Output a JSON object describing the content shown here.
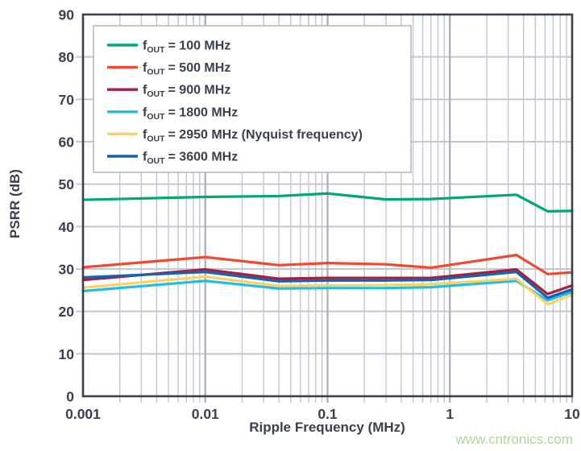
{
  "chart_data": {
    "type": "line",
    "title": "",
    "xlabel": "Ripple Frequency (MHz)",
    "ylabel": "PSRR (dB)",
    "x_scale": "log",
    "xlim": [
      0.001,
      10
    ],
    "ylim": [
      0,
      90
    ],
    "grid": "on",
    "legend_position": "upper-left",
    "x_ticks": [
      {
        "value": 0.001,
        "label": "0.001"
      },
      {
        "value": 0.01,
        "label": "0.01"
      },
      {
        "value": 0.1,
        "label": "0.1"
      },
      {
        "value": 1,
        "label": "1"
      },
      {
        "value": 10,
        "label": "10"
      }
    ],
    "y_ticks": [
      0,
      10,
      20,
      30,
      40,
      50,
      60,
      70,
      80,
      90
    ],
    "x": [
      0.001,
      0.01,
      0.04,
      0.1,
      0.3,
      0.7,
      3.5,
      6.3,
      10
    ],
    "series": [
      {
        "name": "fOUT = 100 MHz",
        "label_prefix": "f",
        "label_sub": "OUT",
        "label_rest": "= 100 MHz",
        "color": "#00a873",
        "values": [
          46.3,
          47.0,
          47.2,
          47.8,
          46.4,
          46.5,
          47.5,
          43.6,
          43.7
        ]
      },
      {
        "name": "fOUT = 500 MHz",
        "label_prefix": "f",
        "label_sub": "OUT",
        "label_rest": "= 500 MHz",
        "color": "#f0492f",
        "values": [
          30.4,
          32.8,
          30.9,
          31.4,
          31.1,
          30.3,
          33.3,
          28.8,
          29.2
        ]
      },
      {
        "name": "fOUT = 900 MHz",
        "label_prefix": "f",
        "label_sub": "OUT",
        "label_rest": "= 900 MHz",
        "color": "#a81e3e",
        "values": [
          27.4,
          29.9,
          27.7,
          27.9,
          27.9,
          27.9,
          29.9,
          24.1,
          26.1
        ]
      },
      {
        "name": "fOUT = 1800 MHz",
        "label_prefix": "f",
        "label_sub": "OUT",
        "label_rest": "= 1800 MHz",
        "color": "#22bceb",
        "values": [
          24.8,
          27.2,
          25.4,
          25.5,
          25.5,
          25.7,
          27.2,
          22.6,
          24.6
        ]
      },
      {
        "name": "fOUT = 2950 MHz (Nyquist frequency)",
        "label_prefix": "f",
        "label_sub": "OUT",
        "label_rest": "= 2950 MHz (Nyquist frequency)",
        "color": "#fdd25f",
        "values": [
          25.6,
          28.2,
          26.0,
          26.1,
          26.2,
          26.4,
          27.7,
          21.7,
          23.9
        ]
      },
      {
        "name": "fOUT = 3600 MHz",
        "label_prefix": "f",
        "label_sub": "OUT",
        "label_rest": "= 3600 MHz",
        "color": "#1463ae",
        "values": [
          28.0,
          29.3,
          27.1,
          27.3,
          27.3,
          27.4,
          29.3,
          23.2,
          25.2
        ]
      }
    ]
  },
  "watermark": {
    "text": "www.cntronics.com",
    "color": "#aed69c"
  },
  "colors": {
    "axis_frame": "#3b4050",
    "axis_text": "#3b4050",
    "grid_minor": "#c3c7d1",
    "grid_major": "#a8adbb",
    "legend_border": "#b0b5c2",
    "legend_bg": "#ffffff"
  }
}
